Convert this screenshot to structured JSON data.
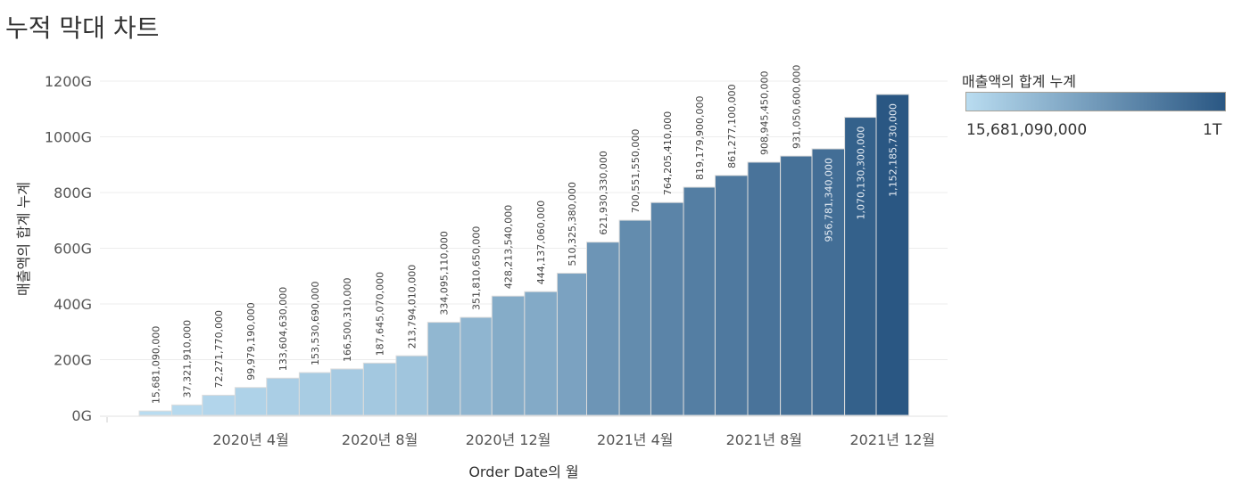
{
  "title": "누적 막대 차트",
  "legend": {
    "title": "매출액의 합계 누계",
    "min_label": "15,681,090,000",
    "max_label": "1T",
    "color_low": "#b9dcf0",
    "color_high": "#2a5783"
  },
  "chart_data": {
    "type": "bar",
    "xlabel": "Order Date의 월",
    "ylabel": "매출액의 합계 누계",
    "ylim": [
      0,
      1200000000000
    ],
    "yticks": [
      {
        "value": 0,
        "label": "0G"
      },
      {
        "value": 200000000000,
        "label": "200G"
      },
      {
        "value": 400000000000,
        "label": "400G"
      },
      {
        "value": 600000000000,
        "label": "600G"
      },
      {
        "value": 800000000000,
        "label": "800G"
      },
      {
        "value": 1000000000000,
        "label": "1000G"
      },
      {
        "value": 1200000000000,
        "label": "1200G"
      }
    ],
    "xticks": [
      {
        "month": "2020-04",
        "label": "2020년 4월"
      },
      {
        "month": "2020-08",
        "label": "2020년 8월"
      },
      {
        "month": "2020-12",
        "label": "2020년 12월"
      },
      {
        "month": "2021-04",
        "label": "2021년 4월"
      },
      {
        "month": "2021-08",
        "label": "2021년 8월"
      },
      {
        "month": "2021-12",
        "label": "2021년 12월"
      }
    ],
    "grid": true,
    "categories": [
      "2020-01",
      "2020-02",
      "2020-03",
      "2020-04",
      "2020-05",
      "2020-06",
      "2020-07",
      "2020-08",
      "2020-09",
      "2020-10",
      "2020-11",
      "2020-12",
      "2021-01",
      "2021-02",
      "2021-03",
      "2021-04",
      "2021-05",
      "2021-06",
      "2021-07",
      "2021-08",
      "2021-09",
      "2021-10",
      "2021-11",
      "2021-12"
    ],
    "values": [
      15681090000,
      37321910000,
      72271770000,
      99979190000,
      133604630000,
      153530690000,
      166500310000,
      187645070000,
      213794010000,
      334095110000,
      351810650000,
      428213540000,
      444137060000,
      510325380000,
      621930330000,
      700551550000,
      764205410000,
      819179900000,
      861277100000,
      908945450000,
      931050600000,
      956781340000,
      1070130300000,
      1152185730000
    ],
    "value_labels": [
      "15,681,090,000",
      "37,321,910,000",
      "72,271,770,000",
      "99,979,190,000",
      "133,604,630,000",
      "153,530,690,000",
      "166,500,310,000",
      "187,645,070,000",
      "213,794,010,000",
      "334,095,110,000",
      "351,810,650,000",
      "428,213,540,000",
      "444,137,060,000",
      "510,325,380,000",
      "621,930,330,000",
      "700,551,550,000",
      "764,205,410,000",
      "819,179,900,000",
      "861,277,100,000",
      "908,945,450,000",
      "931,050,600,000",
      "956,781,340,000",
      "1,070,130,300,000",
      "1,152,185,730,000"
    ]
  }
}
